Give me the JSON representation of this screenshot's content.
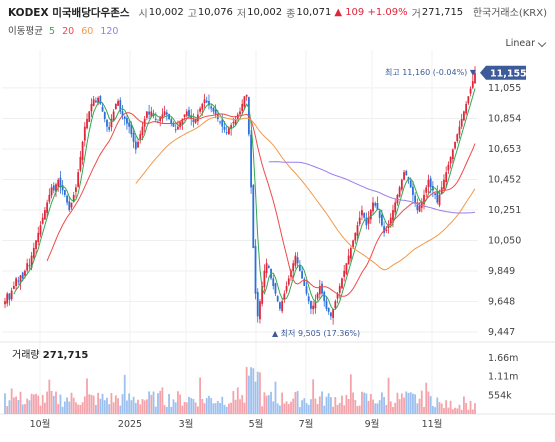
{
  "header": {
    "name": "KODEX 미국배당다우존스",
    "open_label": "시",
    "open": "10,002",
    "high_label": "고",
    "high": "10,076",
    "low_label": "저",
    "low": "10,002",
    "close_label": "종",
    "close": "10,071",
    "change": "▲ 109 +1.09%",
    "volume_label": "거",
    "volume": "271,715",
    "exchange": "한국거래소(KRX)"
  },
  "ma_legend": {
    "title": "이동평균",
    "periods": [
      {
        "label": "5",
        "color": "#34a853"
      },
      {
        "label": "20",
        "color": "#f04a4a"
      },
      {
        "label": "60",
        "color": "#f2994a"
      },
      {
        "label": "120",
        "color": "#9b7bea"
      }
    ]
  },
  "scale_mode": "Linear",
  "colors": {
    "up": "#e0263a",
    "down": "#2a6fdb",
    "current": "#3d5a99"
  },
  "chart_data": {
    "type": "candlestick",
    "y_ticks": [
      "11,055",
      "10,854",
      "10,653",
      "10,452",
      "10,251",
      "10,050",
      "9,849",
      "9,648",
      "9,447"
    ],
    "y_values": [
      11055,
      10854,
      10653,
      10452,
      10251,
      10050,
      9849,
      9648,
      9447
    ],
    "ylim": [
      9447,
      11160
    ],
    "x_ticks": [
      "10월",
      "2025",
      "3월",
      "5월",
      "7월",
      "9월",
      "11월"
    ],
    "current_price": "11,155",
    "current_value": 11155,
    "high_annotation": "최고 11,160 (-0.04%) ▼",
    "high_value": 11160,
    "low_annotation": "▲ 최저 9,505 (17.36%)",
    "low_value": 9505,
    "close_series": [
      9650,
      9700,
      9660,
      9720,
      9750,
      9800,
      9780,
      9820,
      9800,
      9850,
      9900,
      9880,
      9950,
      10000,
      10050,
      10100,
      10150,
      10200,
      10250,
      10300,
      10350,
      10400,
      10380,
      10420,
      10450,
      10400,
      10380,
      10350,
      10300,
      10250,
      10300,
      10350,
      10400,
      10500,
      10600,
      10700,
      10800,
      10850,
      10900,
      10950,
      10980,
      10960,
      10990,
      10950,
      10900,
      10850,
      10800,
      10780,
      10850,
      10900,
      10950,
      10970,
      10900,
      10870,
      10850,
      10820,
      10800,
      10750,
      10700,
      10650,
      10700,
      10750,
      10800,
      10850,
      10900,
      10880,
      10900,
      10870,
      10850,
      10830,
      10860,
      10880,
      10900,
      10880,
      10850,
      10820,
      10800,
      10780,
      10800,
      10830,
      10850,
      10880,
      10900,
      10870,
      10850,
      10830,
      10850,
      10880,
      10920,
      10950,
      10980,
      10960,
      10940,
      10920,
      10900,
      10880,
      10850,
      10830,
      10800,
      10780,
      10760,
      10790,
      10810,
      10830,
      10850,
      10880,
      10900,
      10950,
      11000,
      11010,
      10750,
      10400,
      10000,
      9700,
      9550,
      9650,
      9750,
      9850,
      9900,
      9870,
      9800,
      9750,
      9700,
      9650,
      9600,
      9650,
      9700,
      9750,
      9800,
      9850,
      9900,
      9950,
      9900,
      9850,
      9800,
      9750,
      9700,
      9650,
      9600,
      9620,
      9650,
      9700,
      9750,
      9700,
      9650,
      9600,
      9580,
      9550,
      9600,
      9650,
      9700,
      9750,
      9800,
      9850,
      9900,
      9950,
      10000,
      10050,
      10100,
      10150,
      10200,
      10250,
      10200,
      10150,
      10200,
      10250,
      10300,
      10280,
      10250,
      10200,
      10150,
      10100,
      10120,
      10150,
      10200,
      10250,
      10300,
      10350,
      10400,
      10450,
      10500,
      10480,
      10450,
      10400,
      10350,
      10300,
      10250,
      10280,
      10300,
      10350,
      10400,
      10450,
      10400,
      10380,
      10350,
      10300,
      10350,
      10400,
      10450,
      10500,
      10550,
      10600,
      10650,
      10700,
      10750,
      10800,
      10850,
      10900,
      10950,
      11000,
      11050,
      11100,
      11155
    ],
    "volume_ticks": [
      "1.66m",
      "1.11m",
      "554k"
    ],
    "volume_values": [
      1660000,
      1110000,
      554000
    ]
  },
  "volume_panel": {
    "title": "거래량",
    "value": "271,715"
  }
}
